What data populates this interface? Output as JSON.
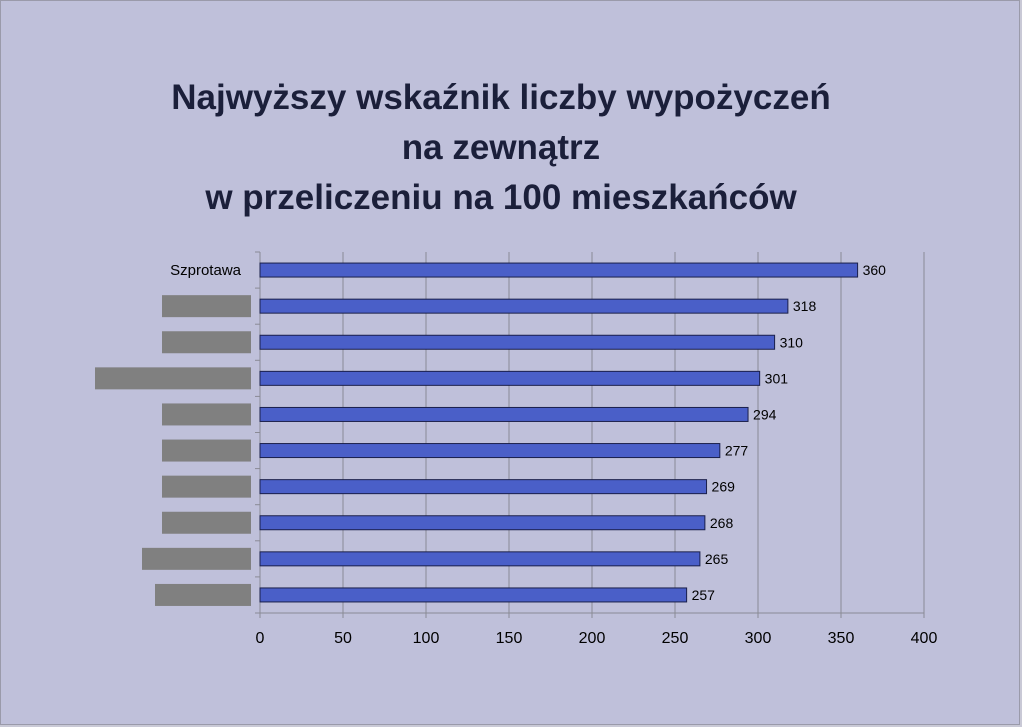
{
  "title_lines": [
    "Najwyższy wskaźnik liczby wypożyczeń",
    "na zewnątrz",
    "w przeliczeniu na 100 mieszkańców"
  ],
  "colors": {
    "background": "#bfc0da",
    "bar_fill": "#4a5fc8",
    "bar_stroke": "#1a1f4a",
    "redaction": "#808080",
    "gridline": "#8a8a95",
    "title": "#1b1f3a"
  },
  "chart_data": {
    "type": "bar",
    "orientation": "horizontal",
    "title": "Najwyższy wskaźnik liczby wypożyczeń na zewnątrz w przeliczeniu na 100 mieszkańców",
    "categories": [
      "Szprotawa",
      "",
      "",
      "",
      "",
      "",
      "",
      "",
      "",
      ""
    ],
    "redacted": [
      false,
      true,
      true,
      true,
      true,
      true,
      true,
      true,
      true,
      true
    ],
    "values": [
      360,
      318,
      310,
      301,
      294,
      277,
      269,
      268,
      265,
      257
    ],
    "xlim": [
      0,
      400
    ],
    "x_ticks": [
      0,
      50,
      100,
      150,
      200,
      250,
      300,
      350,
      400
    ],
    "grid": "vertical",
    "legend": "none",
    "data_labels": true
  }
}
